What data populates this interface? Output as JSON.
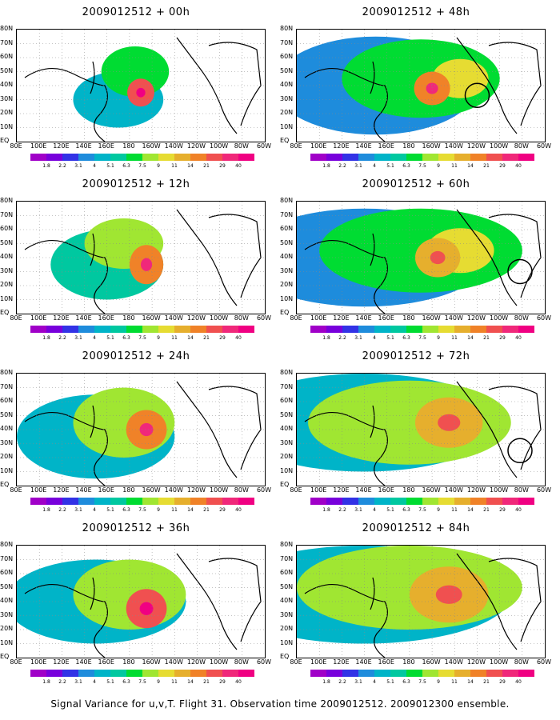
{
  "panels": [
    {
      "title": "2009012512 + 00h",
      "col": 0,
      "row": 0,
      "circle": null
    },
    {
      "title": "2009012512 + 12h",
      "col": 0,
      "row": 1,
      "circle": null
    },
    {
      "title": "2009012512 + 24h",
      "col": 0,
      "row": 2,
      "circle": null
    },
    {
      "title": "2009012512 + 36h",
      "col": 0,
      "row": 3,
      "circle": null
    },
    {
      "title": "2009012512 + 48h",
      "col": 1,
      "row": 0,
      "circle": {
        "lon": -120,
        "lat": 33
      }
    },
    {
      "title": "2009012512 + 60h",
      "col": 1,
      "row": 1,
      "circle": {
        "lon": -82,
        "lat": 30
      }
    },
    {
      "title": "2009012512 + 72h",
      "col": 1,
      "row": 2,
      "circle": {
        "lon": -82,
        "lat": 25
      }
    },
    {
      "title": "2009012512 + 84h",
      "col": 1,
      "row": 3,
      "circle": null
    }
  ],
  "lat_labels": [
    "80N",
    "70N",
    "60N",
    "50N",
    "40N",
    "30N",
    "20N",
    "10N",
    "EQ"
  ],
  "lon_labels": [
    "80E",
    "100E",
    "120E",
    "140E",
    "160E",
    "180",
    "160W",
    "140W",
    "120W",
    "100W",
    "80W",
    "60W"
  ],
  "colorbar": {
    "labels": [
      "1.8",
      "2.2",
      "3.1",
      "4",
      "5.1",
      "6.3",
      "7.5",
      "9",
      "11",
      "14",
      "21",
      "29",
      "40"
    ],
    "colors": [
      "#a000c8",
      "#7800dc",
      "#3232e6",
      "#1e8cdc",
      "#00b4c8",
      "#00c8a0",
      "#00dc32",
      "#a0e632",
      "#e6dc32",
      "#e6af2d",
      "#f08228",
      "#f05050",
      "#f0287a",
      "#f00082"
    ]
  },
  "footer": "Signal Variance for u,v,T. Flight 31. Observation time 2009012512. 2009012300 ensemble."
}
